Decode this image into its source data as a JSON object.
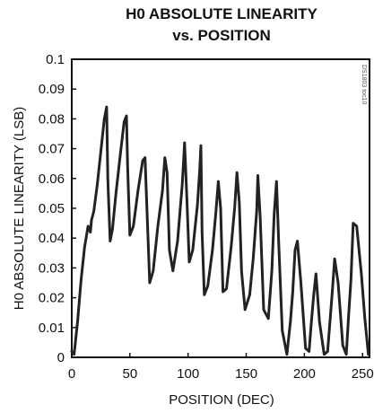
{
  "chart_data": {
    "type": "line",
    "title_line1": "H0 ABSOLUTE LINEARITY",
    "title_line2": "vs. POSITION",
    "xlabel": "POSITION (DEC)",
    "ylabel": "H0 ABSOLUTE LINEARITY (LSB)",
    "xlim": [
      0,
      256
    ],
    "ylim": [
      0,
      0.1
    ],
    "x_ticks": [
      0,
      50,
      100,
      150,
      200,
      250
    ],
    "x_tick_labels": [
      "0",
      "50",
      "100",
      "150",
      "200",
      "250"
    ],
    "y_ticks": [
      0,
      0.01,
      0.02,
      0.03,
      0.04,
      0.05,
      0.06,
      0.07,
      0.08,
      0.09,
      0.1
    ],
    "y_tick_labels": [
      "0",
      "0.01",
      "0.02",
      "0.03",
      "0.04",
      "0.05",
      "0.06",
      "0.07",
      "0.08",
      "0.09",
      "0.1"
    ],
    "grid": false,
    "watermark": "DS1803 toc10",
    "series": [
      {
        "color": "#222222",
        "x": [
          0,
          2,
          5,
          8,
          11,
          14,
          16,
          17,
          19,
          22,
          25,
          28,
          30,
          31,
          33,
          35,
          38,
          42,
          45,
          47,
          48,
          50,
          53,
          57,
          61,
          63,
          65,
          67,
          70,
          74,
          78,
          80,
          82,
          84,
          87,
          91,
          95,
          97,
          99,
          101,
          104,
          108,
          110,
          111,
          112,
          114,
          117,
          121,
          124,
          126,
          128,
          130,
          133,
          137,
          140,
          142,
          144,
          146,
          149,
          153,
          156,
          159,
          160,
          162,
          165,
          169,
          172,
          174,
          176,
          178,
          181,
          185,
          188,
          190,
          192,
          194,
          197,
          201,
          204,
          206,
          208,
          210,
          213,
          217,
          220,
          222,
          224,
          226,
          229,
          233,
          236,
          238,
          240,
          242,
          245,
          249,
          252,
          255
        ],
        "y": [
          0.002,
          0.001,
          0.012,
          0.026,
          0.037,
          0.044,
          0.042,
          0.046,
          0.049,
          0.058,
          0.069,
          0.08,
          0.084,
          0.06,
          0.039,
          0.043,
          0.055,
          0.069,
          0.079,
          0.081,
          0.064,
          0.041,
          0.044,
          0.056,
          0.066,
          0.067,
          0.046,
          0.025,
          0.029,
          0.044,
          0.056,
          0.067,
          0.062,
          0.036,
          0.029,
          0.039,
          0.058,
          0.072,
          0.053,
          0.032,
          0.036,
          0.051,
          0.063,
          0.071,
          0.042,
          0.021,
          0.024,
          0.036,
          0.049,
          0.059,
          0.05,
          0.022,
          0.023,
          0.037,
          0.05,
          0.062,
          0.052,
          0.029,
          0.016,
          0.021,
          0.033,
          0.049,
          0.061,
          0.047,
          0.016,
          0.013,
          0.029,
          0.048,
          0.059,
          0.038,
          0.009,
          0.001,
          0.012,
          0.022,
          0.036,
          0.039,
          0.025,
          0.003,
          0.002,
          0.012,
          0.021,
          0.028,
          0.012,
          0.001,
          0.002,
          0.012,
          0.022,
          0.033,
          0.025,
          0.004,
          0.001,
          0.014,
          0.026,
          0.045,
          0.044,
          0.028,
          0.013,
          0.001
        ]
      }
    ]
  }
}
